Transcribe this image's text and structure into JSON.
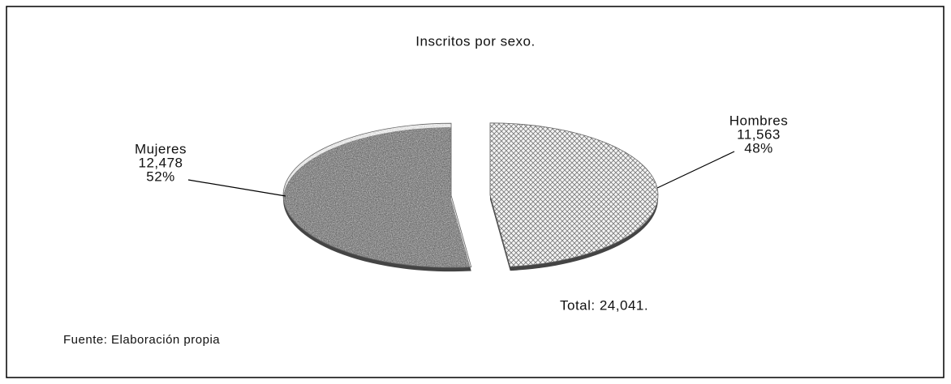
{
  "chart_data": {
    "type": "pie",
    "title": "Inscritos por sexo.",
    "categories": [
      "Hombres",
      "Mujeres"
    ],
    "values": [
      11563,
      12478
    ],
    "value_labels": [
      "11,563",
      "12,478"
    ],
    "percentages": [
      48,
      52
    ],
    "percent_labels": [
      "48%",
      "52%"
    ],
    "annotations": [
      "Total: 24,041.",
      "Fuente: Elaboración propia"
    ]
  }
}
